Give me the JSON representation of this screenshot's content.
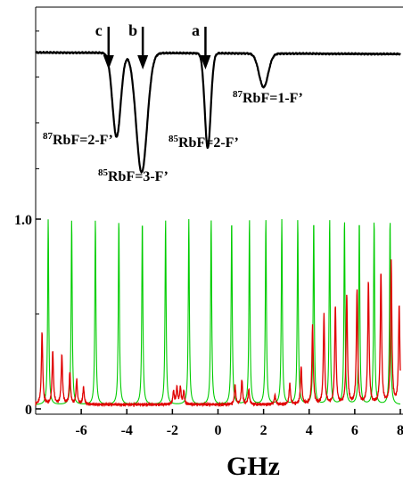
{
  "chart_data": [
    {
      "type": "line",
      "panel": "top",
      "title": "",
      "xlabel": "",
      "ylabel": "",
      "x_range_ghz": [
        -8,
        8
      ],
      "grid": false,
      "series": [
        {
          "color": "#000000"
        }
      ],
      "baseline_level": 0.82,
      "absorption_dips": [
        {
          "label_pre": "87",
          "label_main": "RbF=2-F’",
          "center_ghz": -4.45,
          "depth": 0.55
        },
        {
          "label_pre": "85",
          "label_main": "RbF=3-F’",
          "center_ghz": -3.35,
          "depth": 0.78
        },
        {
          "label_pre": "85",
          "label_main": "RbF=2-F’",
          "center_ghz": -0.45,
          "depth": 0.62
        },
        {
          "label_pre": "87",
          "label_main": "RbF=1-F’",
          "center_ghz": 2.0,
          "depth": 0.22
        }
      ],
      "arrows": [
        {
          "letter": "c",
          "x_ghz": -4.8
        },
        {
          "letter": "b",
          "x_ghz": -3.3
        },
        {
          "letter": "a",
          "x_ghz": -0.55
        }
      ]
    },
    {
      "type": "line",
      "panel": "bottom",
      "title": "",
      "xlabel": "GHz",
      "ylabel": "",
      "xlim": [
        -8,
        8
      ],
      "ylim": [
        0,
        1.0
      ],
      "grid": false,
      "x_ticks": [
        -6,
        -4,
        -2,
        0,
        2,
        4,
        6,
        8
      ],
      "x_tick_labels": [
        "-6",
        "-4",
        "-2",
        "0",
        "2",
        "4",
        "6",
        "8"
      ],
      "y_ticks": [
        0,
        1.0
      ],
      "y_tick_labels": [
        "0",
        "1.0"
      ],
      "series": [
        {
          "color": "#00cc00",
          "kind": "periodic transmission peaks",
          "peaks_ghz": [
            -7.45,
            -6.42,
            -5.38,
            -4.35,
            -3.32,
            -2.3,
            -1.28,
            -0.3,
            0.6,
            1.38,
            2.1,
            2.8,
            3.5,
            4.2,
            4.9,
            5.55,
            6.2,
            6.85,
            7.55
          ],
          "peak_height": 1.0,
          "floor": 0.02
        },
        {
          "color": "#e00000",
          "kind": "red trace peaks",
          "peaks": [
            {
              "x": -7.72,
              "y": 0.38
            },
            {
              "x": -7.25,
              "y": 0.28
            },
            {
              "x": -6.85,
              "y": 0.26
            },
            {
              "x": -6.5,
              "y": 0.17
            },
            {
              "x": -6.2,
              "y": 0.13
            },
            {
              "x": -5.9,
              "y": 0.09
            },
            {
              "x": -1.95,
              "y": 0.07
            },
            {
              "x": -1.8,
              "y": 0.09
            },
            {
              "x": -1.65,
              "y": 0.09
            },
            {
              "x": -1.5,
              "y": 0.07
            },
            {
              "x": 0.75,
              "y": 0.1
            },
            {
              "x": 1.05,
              "y": 0.13
            },
            {
              "x": 1.35,
              "y": 0.08
            },
            {
              "x": 2.5,
              "y": 0.05
            },
            {
              "x": 3.15,
              "y": 0.11
            },
            {
              "x": 3.65,
              "y": 0.2
            },
            {
              "x": 4.15,
              "y": 0.42
            },
            {
              "x": 4.65,
              "y": 0.47
            },
            {
              "x": 5.15,
              "y": 0.52
            },
            {
              "x": 5.65,
              "y": 0.58
            },
            {
              "x": 6.1,
              "y": 0.6
            },
            {
              "x": 6.6,
              "y": 0.65
            },
            {
              "x": 7.15,
              "y": 0.7
            },
            {
              "x": 7.6,
              "y": 0.75
            },
            {
              "x": 7.95,
              "y": 0.52
            }
          ],
          "floor": 0.01
        }
      ]
    }
  ]
}
